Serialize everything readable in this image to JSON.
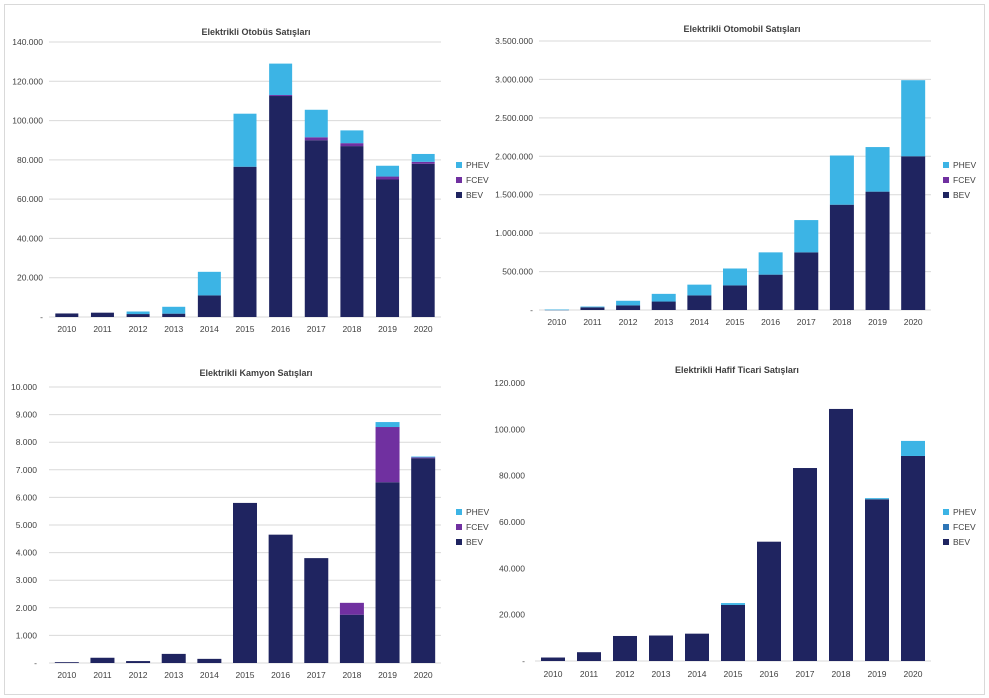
{
  "chart_data": [
    {
      "type": "bar",
      "stacked": true,
      "title": "Elektrikli Otobüs Satışları",
      "categories": [
        "2010",
        "2011",
        "2012",
        "2013",
        "2014",
        "2015",
        "2016",
        "2017",
        "2018",
        "2019",
        "2020"
      ],
      "ylim": [
        0,
        140000
      ],
      "yticks": [
        0,
        20000,
        40000,
        60000,
        80000,
        100000,
        120000,
        140000
      ],
      "ytick_labels": [
        "-",
        "20.000",
        "40.000",
        "60.000",
        "80.000",
        "100.000",
        "120.000",
        "140.000"
      ],
      "grid": true,
      "legend": "right",
      "series": [
        {
          "name": "BEV",
          "color": "#1f2460",
          "values": [
            1800,
            2200,
            1500,
            1700,
            11000,
            76500,
            112500,
            90000,
            87000,
            70000,
            78000
          ]
        },
        {
          "name": "FCEV",
          "color": "#7030a0",
          "values": [
            0,
            0,
            0,
            0,
            0,
            0,
            500,
            1500,
            1500,
            1500,
            1000
          ]
        },
        {
          "name": "PHEV",
          "color": "#3cb4e5",
          "values": [
            0,
            0,
            1300,
            3500,
            12000,
            27000,
            16000,
            14000,
            6500,
            5500,
            4000
          ]
        }
      ]
    },
    {
      "type": "bar",
      "stacked": true,
      "title": "Elektrikli Otomobil Satışları",
      "categories": [
        "2010",
        "2011",
        "2012",
        "2013",
        "2014",
        "2015",
        "2016",
        "2017",
        "2018",
        "2019",
        "2020"
      ],
      "ylim": [
        0,
        3500000
      ],
      "yticks": [
        0,
        500000,
        1000000,
        1500000,
        2000000,
        2500000,
        3000000,
        3500000
      ],
      "ytick_labels": [
        "-",
        "500.000",
        "1.000.000",
        "1.500.000",
        "2.000.000",
        "2.500.000",
        "3.000.000",
        "3.500.000"
      ],
      "grid": true,
      "legend": "right",
      "series": [
        {
          "name": "BEV",
          "color": "#1f2460",
          "values": [
            5000,
            35000,
            60000,
            110000,
            190000,
            320000,
            460000,
            750000,
            1370000,
            1540000,
            2000000
          ]
        },
        {
          "name": "FCEV",
          "color": "#7030a0",
          "values": [
            0,
            0,
            0,
            0,
            0,
            0,
            0,
            0,
            0,
            0,
            0
          ]
        },
        {
          "name": "PHEV",
          "color": "#3cb4e5",
          "values": [
            1000,
            10000,
            60000,
            100000,
            140000,
            220000,
            290000,
            420000,
            640000,
            580000,
            990000
          ]
        }
      ]
    },
    {
      "type": "bar",
      "stacked": true,
      "title": "Elektrikli Kamyon Satışları",
      "categories": [
        "2010",
        "2011",
        "2012",
        "2013",
        "2014",
        "2015",
        "2016",
        "2017",
        "2018",
        "2019",
        "2020"
      ],
      "ylim": [
        0,
        10000
      ],
      "yticks": [
        0,
        1000,
        2000,
        3000,
        4000,
        5000,
        6000,
        7000,
        8000,
        9000,
        10000
      ],
      "ytick_labels": [
        "-",
        "1.000",
        "2.000",
        "3.000",
        "4.000",
        "5.000",
        "6.000",
        "7.000",
        "8.000",
        "9.000",
        "10.000"
      ],
      "grid": true,
      "legend": "right",
      "series": [
        {
          "name": "BEV",
          "color": "#1f2460",
          "values": [
            30,
            190,
            70,
            330,
            150,
            5800,
            4650,
            3800,
            1750,
            6550,
            7420
          ]
        },
        {
          "name": "FCEV",
          "color": "#7030a0",
          "values": [
            0,
            0,
            0,
            0,
            0,
            0,
            0,
            0,
            430,
            2000,
            30
          ]
        },
        {
          "name": "PHEV",
          "color": "#3cb4e5",
          "values": [
            0,
            0,
            0,
            0,
            0,
            0,
            0,
            0,
            0,
            180,
            30
          ]
        }
      ]
    },
    {
      "type": "bar",
      "stacked": true,
      "title": "Elektrikli Hafif Ticari Satışları",
      "categories": [
        "2010",
        "2011",
        "2012",
        "2013",
        "2014",
        "2015",
        "2016",
        "2017",
        "2018",
        "2019",
        "2020"
      ],
      "ylim": [
        0,
        120000
      ],
      "yticks": [
        0,
        20000,
        40000,
        60000,
        80000,
        100000,
        120000
      ],
      "ytick_labels": [
        "-",
        "20.000",
        "40.000",
        "60.000",
        "80.000",
        "100.000",
        "120.000"
      ],
      "grid": false,
      "legend": "right",
      "series": [
        {
          "name": "BEV",
          "color": "#1f2460",
          "values": [
            1500,
            3800,
            10800,
            11000,
            11800,
            24200,
            51500,
            83300,
            108800,
            69800,
            88500
          ]
        },
        {
          "name": "FCEV",
          "color": "#2e75b6",
          "values": [
            0,
            0,
            0,
            0,
            0,
            0,
            0,
            0,
            0,
            0,
            0
          ]
        },
        {
          "name": "PHEV",
          "color": "#3cb4e5",
          "values": [
            0,
            0,
            0,
            0,
            0,
            800,
            0,
            0,
            0,
            500,
            6500
          ]
        }
      ]
    }
  ]
}
